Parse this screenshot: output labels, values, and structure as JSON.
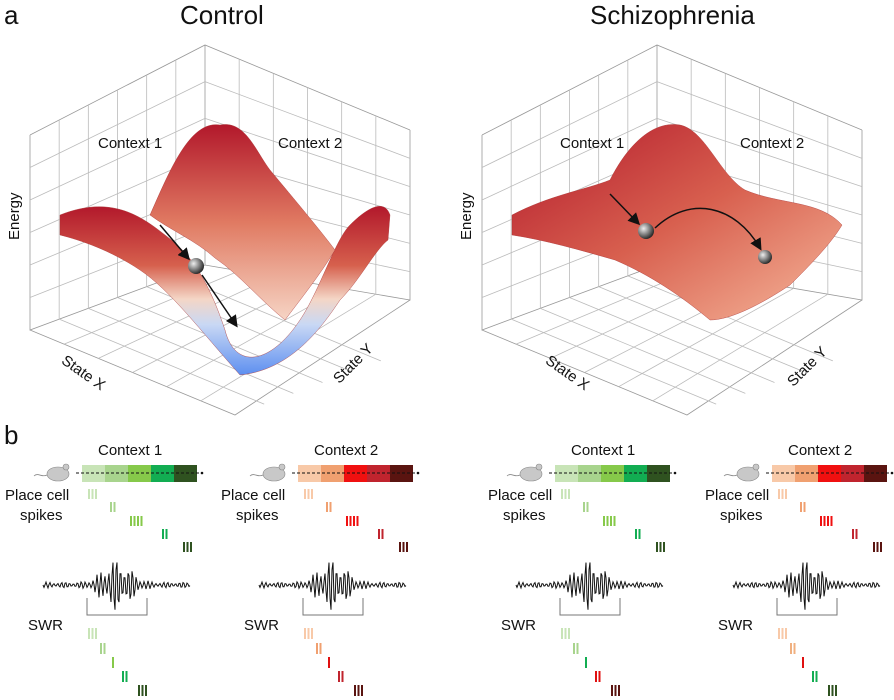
{
  "panel_a": {
    "letter": "a",
    "plots": [
      {
        "title": "Control",
        "context1": "Context 1",
        "context2": "Context 2",
        "zlabel": "Energy",
        "xlabel": "State X",
        "ylabel": "State Y"
      },
      {
        "title": "Schizophrenia",
        "context1": "Context 1",
        "context2": "Context 2",
        "zlabel": "Energy",
        "xlabel": "State X",
        "ylabel": "State Y"
      }
    ],
    "colors": {
      "high": "#b2182b",
      "mid": "#f4a582",
      "low": "#6f9ef0"
    }
  },
  "panel_b": {
    "letter": "b",
    "place_label_line1": "Place cell",
    "place_label_line2": "spikes",
    "swr_label": "SWR",
    "context1_colors": [
      "#c8e4b7",
      "#a8d48d",
      "#86c94a",
      "#12ad52",
      "#2f5220"
    ],
    "context2_colors": [
      "#f8c9a8",
      "#f0a070",
      "#f01010",
      "#c0242e",
      "#5a1410"
    ],
    "place_spike_counts": [
      3,
      2,
      4,
      2,
      3
    ],
    "swr_spike_counts": [
      3,
      2,
      1,
      2,
      3
    ],
    "groups": [
      {
        "context": "Context 1",
        "track": "context1",
        "swr_colors": [
          "#c8e4b7",
          "#a8d48d",
          "#86c94a",
          "#12ad52",
          "#2f5220"
        ]
      },
      {
        "context": "Context 2",
        "track": "context2",
        "swr_colors": [
          "#f8c9a8",
          "#f0a070",
          "#e01010",
          "#c0242e",
          "#5a1410"
        ]
      },
      {
        "context": "Context 1",
        "track": "context1",
        "swr_colors": [
          "#c8e4b7",
          "#a8d48d",
          "#12ad52",
          "#e01010",
          "#5a1410"
        ]
      },
      {
        "context": "Context 2",
        "track": "context2",
        "swr_colors": [
          "#f8c9a8",
          "#f0b080",
          "#e01010",
          "#12ad52",
          "#2f5220"
        ]
      }
    ]
  }
}
